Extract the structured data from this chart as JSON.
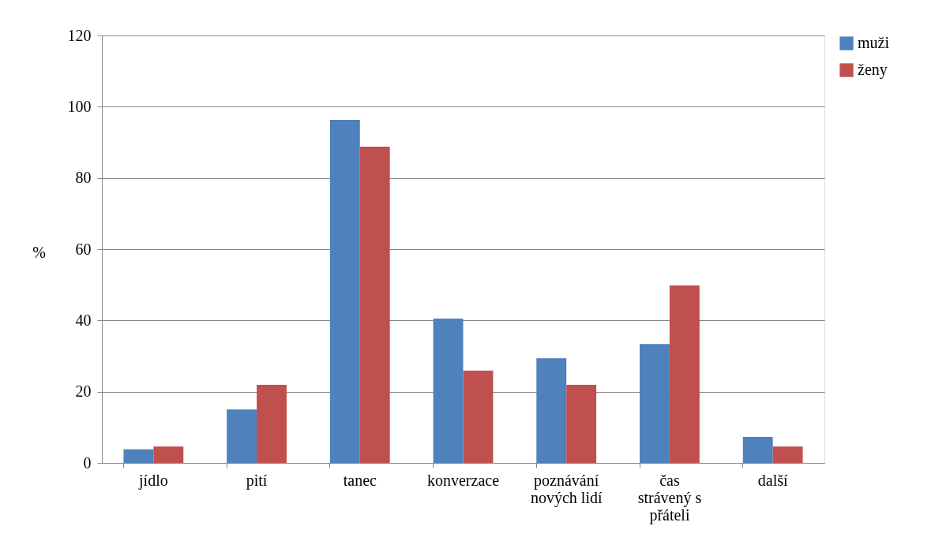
{
  "chart_data": {
    "type": "bar",
    "ylabel": "%",
    "categories": [
      "jídlo",
      "pití",
      "tanec",
      "konverzace",
      "poznávání nových lidí",
      "čas strávený s přáteli",
      "další"
    ],
    "series": [
      {
        "name": "muži",
        "color": "#4f81bd",
        "values": [
          3.8,
          15.0,
          96.3,
          40.5,
          29.4,
          33.4,
          7.3
        ]
      },
      {
        "name": "ženy",
        "color": "#c0504d",
        "values": [
          4.6,
          21.9,
          88.8,
          25.9,
          21.9,
          49.8,
          4.6
        ]
      }
    ],
    "ylim": [
      0,
      120
    ],
    "yticks": [
      0,
      20,
      40,
      60,
      80,
      100,
      120
    ],
    "grid": "y",
    "legend": "right"
  }
}
